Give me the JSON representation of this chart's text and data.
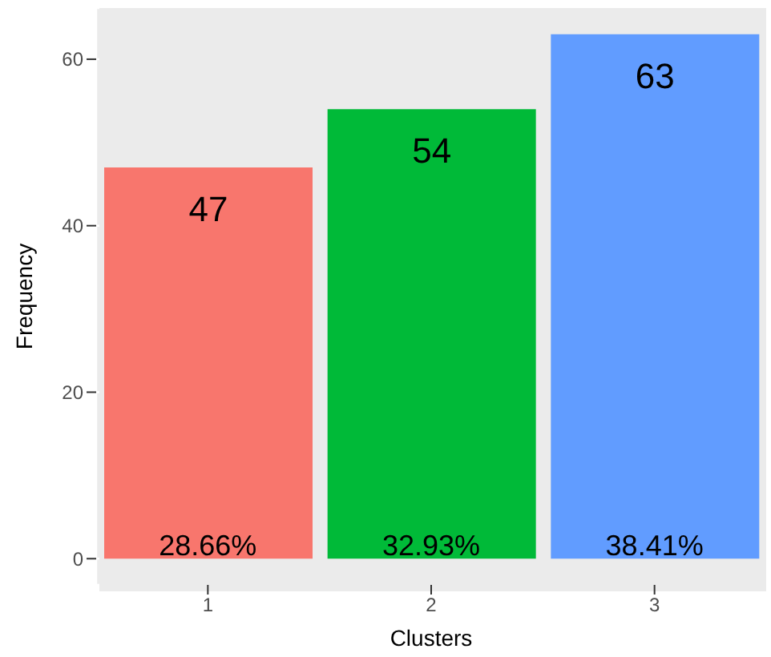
{
  "chart_data": {
    "type": "bar",
    "xlabel": "Clusters",
    "ylabel": "Frequency",
    "categories": [
      "1",
      "2",
      "3"
    ],
    "values": [
      47,
      54,
      63
    ],
    "colors": [
      "#f8766d",
      "#00ba38",
      "#619cff"
    ],
    "ylim": [
      -3.15,
      66.15
    ],
    "yticks": [
      0,
      20,
      40,
      60
    ],
    "grid": true,
    "data_labels": true,
    "annotations": [
      {
        "text": "28.66%",
        "x": "1",
        "y": 0
      },
      {
        "text": "32.93%",
        "x": "2",
        "y": 0
      },
      {
        "text": "38.41%",
        "x": "3",
        "y": 0
      }
    ]
  }
}
